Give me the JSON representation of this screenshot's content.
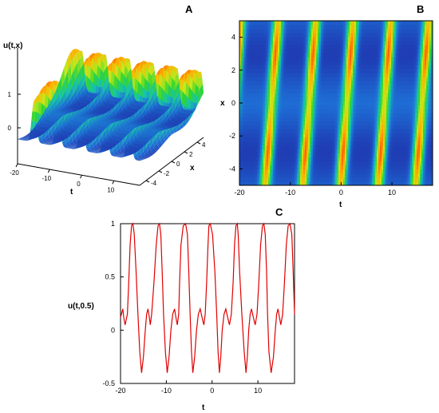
{
  "panels": {
    "a": {
      "letter": "A"
    },
    "b": {
      "letter": "B"
    },
    "c": {
      "letter": "C"
    }
  },
  "chart_data": [
    {
      "panel": "A",
      "type": "surface3d",
      "zlabel": "u(t,x)",
      "xlabel": "t",
      "ylabel": "x",
      "t_ticks": [
        -20,
        -10,
        0,
        10
      ],
      "x_ticks": [
        -4,
        -2,
        0,
        2,
        4
      ],
      "z_ticks": [
        0,
        1
      ],
      "t_range": [
        -20,
        18
      ],
      "x_range": [
        -5,
        5
      ],
      "colormap": [
        "#1f1a9c",
        "#1e6fd6",
        "#17c3b0",
        "#2fd62f",
        "#c8e81a",
        "#ffae00",
        "#ff2a00"
      ]
    },
    {
      "panel": "B",
      "type": "heatmap",
      "xlabel": "t",
      "ylabel": "x",
      "xlim": [
        -20,
        18
      ],
      "ylim": [
        -5,
        5
      ],
      "x_ticks": [
        -20,
        -10,
        0,
        10
      ],
      "y_ticks": [
        -4,
        -2,
        0,
        2,
        4
      ],
      "colormap": [
        "#1f1a9c",
        "#1e6fd6",
        "#17c3b0",
        "#2fd62f",
        "#c8e81a",
        "#ffae00",
        "#ff2a00"
      ]
    },
    {
      "panel": "C",
      "type": "line",
      "xlabel": "t",
      "ylabel": "u(t,0.5)",
      "xlim": [
        -20,
        18
      ],
      "ylim": [
        -0.5,
        1
      ],
      "x_ticks": [
        -20,
        -10,
        0,
        10
      ],
      "y_ticks": [
        -0.5,
        0,
        0.5,
        1
      ],
      "series": [
        {
          "color": "#e00000",
          "x": [
            -20,
            -19.5,
            -19.3,
            -19,
            -18.5,
            -18.2,
            -17.9,
            -17.6,
            -17.3,
            -17,
            -16.6,
            -16.2,
            -15.8,
            -15.4,
            -15.0,
            -14.6,
            -14.3,
            -14.0,
            -13.7,
            -13.5,
            -13.2,
            -12.7,
            -12.2,
            -11.8,
            -11.5,
            -11.2,
            -10.9,
            -10.6,
            -10.2,
            -9.8,
            -9.4,
            -9.0,
            -8.6,
            -8.2,
            -7.9,
            -7.6,
            -7.3,
            -7.1,
            -6.8,
            -6.3,
            -5.8,
            -5.4,
            -5.1,
            -4.8,
            -4.5,
            -4.2,
            -3.8,
            -3.4,
            -3.0,
            -2.6,
            -2.2,
            -1.8,
            -1.5,
            -1.2,
            -0.9,
            -0.7,
            -0.4,
            0.1,
            0.6,
            1.0,
            1.3,
            1.6,
            1.9,
            2.2,
            2.6,
            3.0,
            3.4,
            3.8,
            4.2,
            4.6,
            4.9,
            5.2,
            5.5,
            5.7,
            6.0,
            6.5,
            7.0,
            7.4,
            7.7,
            8.0,
            8.3,
            8.6,
            9.0,
            9.4,
            9.8,
            10.2,
            10.6,
            11.0,
            11.3,
            11.6,
            11.9,
            12.1,
            12.4,
            12.9,
            13.4,
            13.8,
            14.1,
            14.4,
            14.7,
            15.0,
            15.4,
            15.8,
            16.2,
            16.6,
            17.0,
            17.4,
            17.7,
            18.0
          ],
          "y": [
            0.12,
            0.2,
            0.12,
            0.05,
            0.15,
            0.45,
            0.8,
            0.98,
            1.0,
            0.9,
            0.55,
            0.15,
            -0.2,
            -0.4,
            -0.25,
            0.0,
            0.15,
            0.2,
            0.12,
            0.05,
            0.15,
            0.45,
            0.8,
            0.98,
            1.0,
            0.9,
            0.55,
            0.15,
            -0.2,
            -0.4,
            -0.25,
            0.0,
            0.15,
            0.2,
            0.12,
            0.05,
            0.15,
            0.45,
            0.8,
            0.98,
            1.0,
            0.9,
            0.55,
            0.15,
            -0.2,
            -0.4,
            -0.25,
            0.0,
            0.15,
            0.2,
            0.12,
            0.05,
            0.15,
            0.45,
            0.8,
            0.98,
            1.0,
            0.9,
            0.55,
            0.15,
            -0.2,
            -0.4,
            -0.25,
            0.0,
            0.15,
            0.2,
            0.12,
            0.05,
            0.15,
            0.45,
            0.8,
            0.98,
            1.0,
            0.9,
            0.55,
            0.15,
            -0.2,
            -0.4,
            -0.25,
            0.0,
            0.15,
            0.2,
            0.12,
            0.05,
            0.15,
            0.45,
            0.8,
            0.98,
            1.0,
            0.9,
            0.55,
            0.15,
            -0.2,
            -0.4,
            -0.25,
            0.0,
            0.15,
            0.2,
            0.12,
            0.05,
            0.15,
            0.45,
            0.8,
            0.98,
            1.0,
            0.9,
            0.55,
            0.15
          ]
        }
      ]
    }
  ]
}
